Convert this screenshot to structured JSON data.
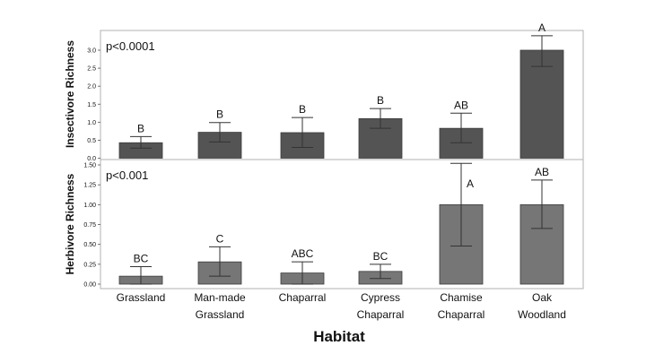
{
  "chart_data": [
    {
      "type": "bar",
      "ylabel": "Insectivore Richness",
      "annotation": "p<0.0001",
      "ylim": [
        0,
        3.5
      ],
      "yticks": [
        "0.0",
        "0.5",
        "1.0",
        "1.5",
        "2.0",
        "2.5",
        "3.0"
      ],
      "grid": false,
      "bar_color": "#545454",
      "series": [
        {
          "values": [
            0.43,
            0.72,
            0.71,
            1.1,
            0.83,
            3.0
          ]
        }
      ],
      "error_low": [
        0.28,
        0.45,
        0.3,
        0.83,
        0.43,
        2.55
      ],
      "error_high": [
        0.6,
        0.99,
        1.13,
        1.38,
        1.25,
        3.4
      ],
      "letters": [
        "B",
        "B",
        "B",
        "B",
        "AB",
        "A"
      ]
    },
    {
      "type": "bar",
      "ylabel": "Herbivore Richness",
      "annotation": "p<0.001",
      "ylim": [
        0,
        1.5
      ],
      "yticks": [
        "0.00",
        "0.25",
        "0.50",
        "0.75",
        "1.00",
        "1.25",
        "1.50"
      ],
      "grid": false,
      "bar_color": "#767676",
      "series": [
        {
          "values": [
            0.1,
            0.28,
            0.14,
            0.16,
            1.0,
            1.0
          ]
        }
      ],
      "error_low": [
        0.0,
        0.1,
        0.0,
        0.07,
        0.48,
        0.7
      ],
      "error_high": [
        0.22,
        0.47,
        0.28,
        0.25,
        1.52,
        1.31
      ],
      "letters": [
        "BC",
        "C",
        "ABC",
        "BC",
        "A",
        "AB"
      ]
    }
  ],
  "categories": [
    [
      "Grassland"
    ],
    [
      "Man-made",
      "Grassland"
    ],
    [
      "Chaparral"
    ],
    [
      "Cypress",
      "Chaparral"
    ],
    [
      "Chamise",
      "Chaparral"
    ],
    [
      "Oak",
      "Woodland"
    ]
  ],
  "xlabel": "Habitat"
}
